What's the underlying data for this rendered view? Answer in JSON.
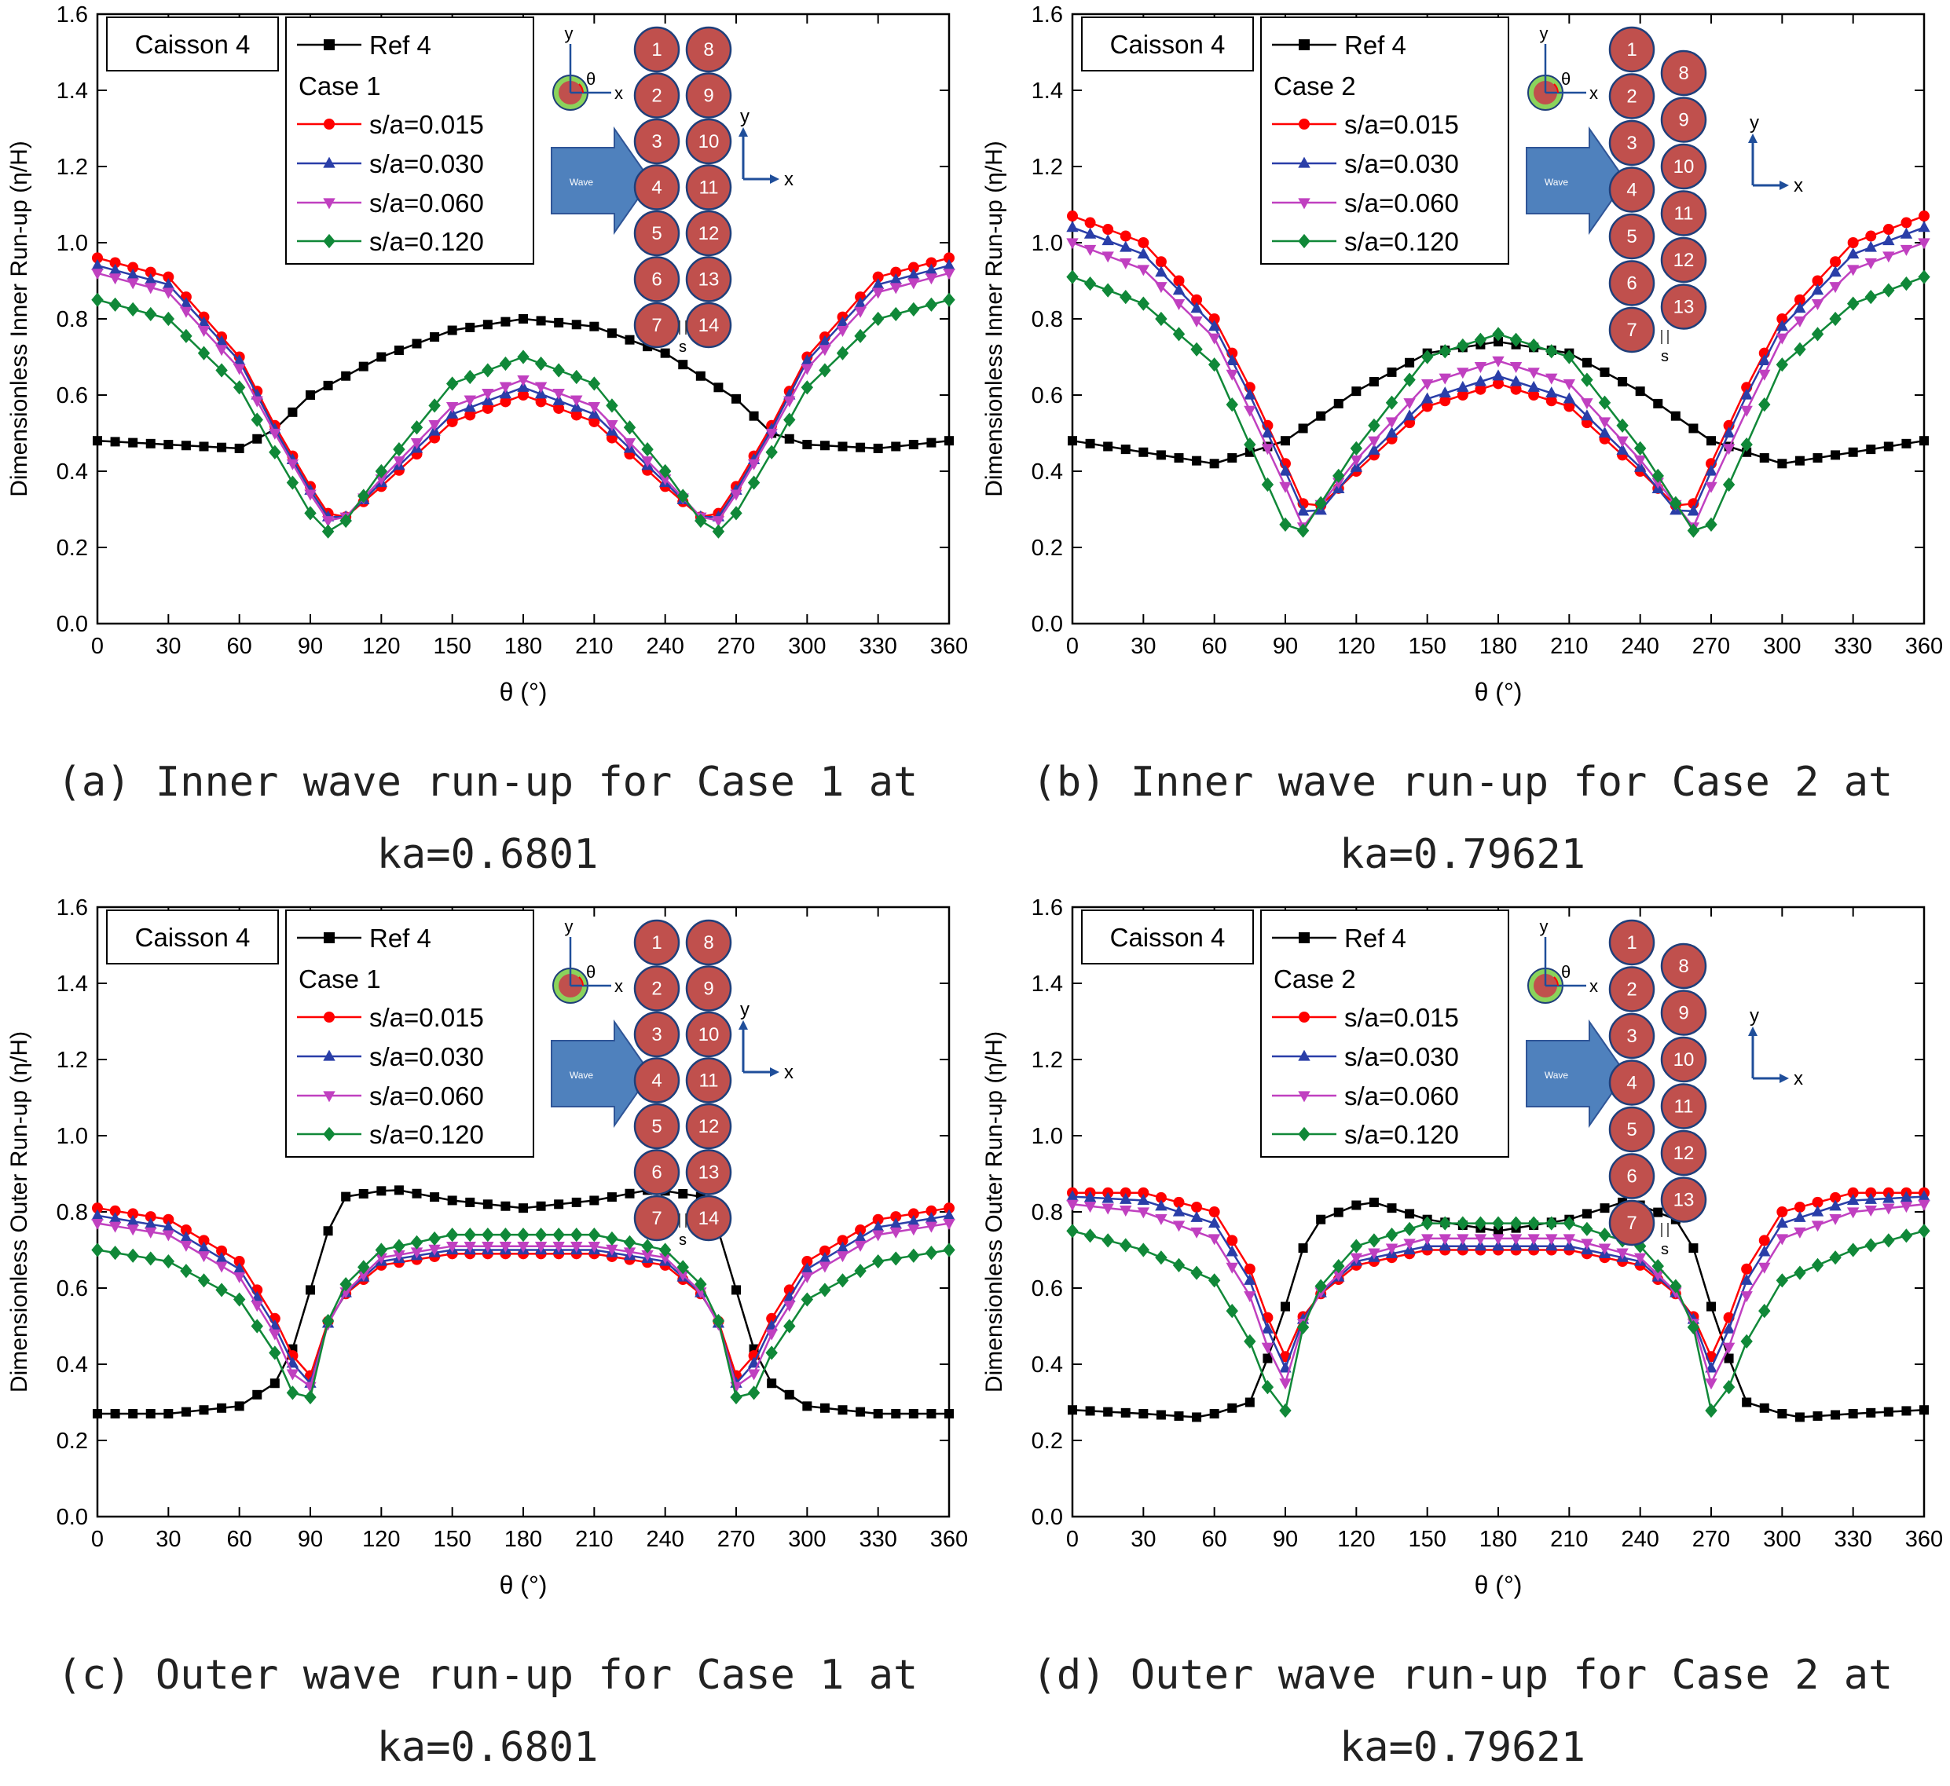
{
  "figure": {
    "x_ticks": [
      0,
      30,
      60,
      90,
      120,
      150,
      180,
      210,
      240,
      270,
      300,
      330,
      360
    ],
    "y_ticks": [
      0.0,
      0.2,
      0.4,
      0.6,
      0.8,
      1.0,
      1.2,
      1.4,
      1.6
    ],
    "xlabel": "θ (°)",
    "box_label": "Caisson 4",
    "legend_ref": "Ref 4",
    "series_labels": [
      "s/a=0.015",
      "s/a=0.030",
      "s/a=0.060",
      "s/a=0.120"
    ],
    "inset": {
      "axis_x": "x",
      "axis_y": "y",
      "angle": "θ",
      "gap": "s",
      "wave": "Wave"
    },
    "colors": {
      "ref": "#000000",
      "s015": "#ff0000",
      "s030": "#2a3ea8",
      "s060": "#c040c0",
      "s120": "#108838",
      "caisson_fill": "#c0504d",
      "caisson_edge": "#1f3f7a",
      "arrow": "#4f81bd",
      "axis_arrow": "#1f4e9a"
    }
  },
  "chart_data": [
    {
      "id": "a",
      "type": "line",
      "case_label": "Case 1",
      "ylabel": "Dimensionless Inner Run-up (η/H)",
      "caption_line1": "(a) Inner wave run-up for Case 1 at",
      "caption_line2": "ka=0.6801",
      "xlim": [
        0,
        360
      ],
      "ylim": [
        0,
        1.6
      ],
      "layout": "aligned",
      "ref": {
        "x": [
          0,
          30,
          60,
          75,
          90,
          120,
          150,
          180,
          210,
          240,
          270,
          285,
          300,
          330,
          360
        ],
        "y": [
          0.48,
          0.47,
          0.46,
          0.51,
          0.6,
          0.7,
          0.77,
          0.8,
          0.78,
          0.71,
          0.59,
          0.5,
          0.47,
          0.46,
          0.48
        ]
      },
      "series": [
        {
          "name": "s/a=0.015",
          "x": [
            0,
            30,
            60,
            75,
            90,
            97,
            105,
            120,
            150,
            180,
            210,
            240,
            255,
            263,
            270,
            285,
            300,
            330,
            360
          ],
          "y": [
            0.96,
            0.91,
            0.7,
            0.52,
            0.36,
            0.29,
            0.28,
            0.36,
            0.53,
            0.6,
            0.53,
            0.36,
            0.28,
            0.29,
            0.36,
            0.52,
            0.7,
            0.91,
            0.96
          ]
        },
        {
          "name": "s/a=0.030",
          "x": [
            0,
            30,
            60,
            75,
            90,
            97,
            105,
            120,
            150,
            180,
            210,
            240,
            255,
            263,
            270,
            285,
            300,
            330,
            360
          ],
          "y": [
            0.94,
            0.89,
            0.69,
            0.51,
            0.35,
            0.28,
            0.28,
            0.37,
            0.55,
            0.62,
            0.55,
            0.37,
            0.28,
            0.28,
            0.35,
            0.51,
            0.69,
            0.89,
            0.94
          ]
        },
        {
          "name": "s/a=0.060",
          "x": [
            0,
            30,
            60,
            75,
            90,
            97,
            105,
            120,
            150,
            180,
            210,
            240,
            255,
            263,
            270,
            285,
            300,
            330,
            360
          ],
          "y": [
            0.92,
            0.87,
            0.67,
            0.5,
            0.34,
            0.27,
            0.28,
            0.38,
            0.57,
            0.64,
            0.57,
            0.38,
            0.28,
            0.27,
            0.34,
            0.5,
            0.67,
            0.87,
            0.92
          ]
        },
        {
          "name": "s/a=0.120",
          "x": [
            0,
            30,
            60,
            75,
            90,
            97,
            105,
            120,
            150,
            180,
            210,
            240,
            255,
            263,
            270,
            285,
            300,
            330,
            360
          ],
          "y": [
            0.85,
            0.8,
            0.62,
            0.45,
            0.29,
            0.24,
            0.27,
            0.4,
            0.63,
            0.7,
            0.63,
            0.4,
            0.27,
            0.24,
            0.29,
            0.45,
            0.62,
            0.8,
            0.85
          ]
        }
      ]
    },
    {
      "id": "b",
      "type": "line",
      "case_label": "Case 2",
      "ylabel": "Dimensionless Inner Run-up (η/H)",
      "caption_line1": "(b) Inner wave run-up for Case 2 at",
      "caption_line2": "ka=0.79621",
      "xlim": [
        0,
        360
      ],
      "ylim": [
        0,
        1.6
      ],
      "layout": "staggered",
      "ref": {
        "x": [
          0,
          30,
          60,
          90,
          120,
          150,
          180,
          210,
          240,
          270,
          300,
          330,
          360
        ],
        "y": [
          0.48,
          0.45,
          0.42,
          0.48,
          0.61,
          0.71,
          0.74,
          0.71,
          0.61,
          0.48,
          0.42,
          0.45,
          0.48
        ]
      },
      "series": [
        {
          "name": "s/a=0.015",
          "x": [
            0,
            30,
            60,
            75,
            90,
            100,
            120,
            150,
            180,
            210,
            240,
            260,
            270,
            285,
            300,
            330,
            360
          ],
          "y": [
            1.07,
            1.0,
            0.8,
            0.62,
            0.42,
            0.28,
            0.4,
            0.57,
            0.63,
            0.57,
            0.4,
            0.28,
            0.42,
            0.62,
            0.8,
            1.0,
            1.07
          ]
        },
        {
          "name": "s/a=0.030",
          "x": [
            0,
            30,
            60,
            75,
            90,
            100,
            120,
            150,
            180,
            210,
            240,
            260,
            270,
            285,
            300,
            330,
            360
          ],
          "y": [
            1.04,
            0.97,
            0.78,
            0.6,
            0.4,
            0.26,
            0.41,
            0.59,
            0.65,
            0.59,
            0.41,
            0.26,
            0.4,
            0.6,
            0.78,
            0.97,
            1.04
          ]
        },
        {
          "name": "s/a=0.060",
          "x": [
            0,
            30,
            60,
            75,
            90,
            97,
            120,
            150,
            180,
            210,
            240,
            263,
            270,
            285,
            300,
            330,
            360
          ],
          "y": [
            1.0,
            0.93,
            0.75,
            0.56,
            0.36,
            0.25,
            0.43,
            0.63,
            0.69,
            0.63,
            0.43,
            0.25,
            0.36,
            0.56,
            0.75,
            0.93,
            1.0
          ]
        },
        {
          "name": "s/a=0.120",
          "x": [
            0,
            30,
            60,
            75,
            90,
            95,
            120,
            150,
            180,
            210,
            240,
            265,
            270,
            285,
            300,
            330,
            360
          ],
          "y": [
            0.91,
            0.84,
            0.68,
            0.47,
            0.26,
            0.22,
            0.46,
            0.7,
            0.76,
            0.7,
            0.46,
            0.22,
            0.26,
            0.47,
            0.68,
            0.84,
            0.91
          ]
        }
      ]
    },
    {
      "id": "c",
      "type": "line",
      "case_label": "Case 1",
      "ylabel": "Dimensionless Outer Run-up (η/H)",
      "caption_line1": "(c) Outer wave run-up for Case 1 at",
      "caption_line2": "ka=0.6801",
      "xlim": [
        0,
        360
      ],
      "ylim": [
        0,
        1.6
      ],
      "layout": "aligned",
      "ref": {
        "x": [
          0,
          30,
          60,
          75,
          85,
          95,
          105,
          125,
          150,
          180,
          210,
          235,
          255,
          265,
          275,
          285,
          300,
          330,
          360
        ],
        "y": [
          0.27,
          0.27,
          0.29,
          0.35,
          0.47,
          0.72,
          0.84,
          0.86,
          0.83,
          0.81,
          0.83,
          0.86,
          0.84,
          0.72,
          0.47,
          0.35,
          0.29,
          0.27,
          0.27
        ]
      },
      "series": [
        {
          "name": "s/a=0.015",
          "x": [
            0,
            30,
            60,
            75,
            85,
            90,
            100,
            120,
            150,
            180,
            210,
            240,
            260,
            270,
            275,
            285,
            300,
            330,
            360
          ],
          "y": [
            0.81,
            0.78,
            0.67,
            0.52,
            0.39,
            0.37,
            0.56,
            0.66,
            0.69,
            0.69,
            0.69,
            0.66,
            0.56,
            0.37,
            0.39,
            0.52,
            0.67,
            0.78,
            0.81
          ]
        },
        {
          "name": "s/a=0.030",
          "x": [
            0,
            30,
            60,
            75,
            85,
            90,
            100,
            120,
            150,
            180,
            210,
            240,
            260,
            270,
            275,
            285,
            300,
            330,
            360
          ],
          "y": [
            0.79,
            0.76,
            0.65,
            0.5,
            0.37,
            0.35,
            0.56,
            0.67,
            0.7,
            0.7,
            0.7,
            0.67,
            0.56,
            0.35,
            0.37,
            0.5,
            0.65,
            0.76,
            0.79
          ]
        },
        {
          "name": "s/a=0.060",
          "x": [
            0,
            30,
            60,
            75,
            85,
            89,
            100,
            120,
            150,
            180,
            210,
            240,
            260,
            271,
            275,
            285,
            300,
            330,
            360
          ],
          "y": [
            0.77,
            0.74,
            0.63,
            0.48,
            0.34,
            0.32,
            0.56,
            0.68,
            0.71,
            0.71,
            0.71,
            0.68,
            0.56,
            0.32,
            0.34,
            0.48,
            0.63,
            0.74,
            0.77
          ]
        },
        {
          "name": "s/a=0.120",
          "x": [
            0,
            30,
            60,
            75,
            85,
            88,
            100,
            120,
            150,
            180,
            210,
            240,
            260,
            272,
            275,
            285,
            300,
            330,
            360
          ],
          "y": [
            0.7,
            0.67,
            0.57,
            0.43,
            0.29,
            0.26,
            0.58,
            0.7,
            0.74,
            0.74,
            0.74,
            0.7,
            0.58,
            0.26,
            0.29,
            0.43,
            0.57,
            0.67,
            0.7
          ]
        }
      ]
    },
    {
      "id": "d",
      "type": "line",
      "case_label": "Case 2",
      "ylabel": "Dimensionless Outer Run-up (η/H)",
      "caption_line1": "(d) Outer wave run-up for Case 2 at",
      "caption_line2": "ka=0.79621",
      "xlim": [
        0,
        360
      ],
      "ylim": [
        0,
        1.6
      ],
      "layout": "staggered",
      "ref": {
        "x": [
          0,
          30,
          55,
          75,
          88,
          95,
          105,
          125,
          150,
          180,
          210,
          235,
          255,
          265,
          272,
          285,
          305,
          330,
          360
        ],
        "y": [
          0.28,
          0.27,
          0.26,
          0.3,
          0.5,
          0.68,
          0.78,
          0.83,
          0.78,
          0.75,
          0.78,
          0.83,
          0.78,
          0.68,
          0.5,
          0.3,
          0.26,
          0.27,
          0.28
        ]
      },
      "series": [
        {
          "name": "s/a=0.015",
          "x": [
            0,
            30,
            60,
            75,
            85,
            90,
            100,
            120,
            150,
            180,
            210,
            240,
            260,
            270,
            275,
            285,
            300,
            330,
            360
          ],
          "y": [
            0.85,
            0.85,
            0.8,
            0.65,
            0.48,
            0.42,
            0.56,
            0.66,
            0.7,
            0.7,
            0.7,
            0.66,
            0.56,
            0.42,
            0.48,
            0.65,
            0.8,
            0.85,
            0.85
          ]
        },
        {
          "name": "s/a=0.030",
          "x": [
            0,
            30,
            60,
            75,
            85,
            90,
            100,
            120,
            150,
            180,
            210,
            240,
            260,
            270,
            275,
            285,
            300,
            330,
            360
          ],
          "y": [
            0.84,
            0.83,
            0.77,
            0.62,
            0.45,
            0.39,
            0.56,
            0.67,
            0.71,
            0.71,
            0.71,
            0.67,
            0.56,
            0.39,
            0.45,
            0.62,
            0.77,
            0.83,
            0.84
          ]
        },
        {
          "name": "s/a=0.060",
          "x": [
            0,
            30,
            60,
            75,
            85,
            89,
            100,
            120,
            150,
            180,
            210,
            240,
            260,
            271,
            275,
            285,
            300,
            330,
            360
          ],
          "y": [
            0.82,
            0.8,
            0.73,
            0.58,
            0.4,
            0.33,
            0.56,
            0.68,
            0.73,
            0.73,
            0.73,
            0.68,
            0.56,
            0.33,
            0.4,
            0.58,
            0.73,
            0.8,
            0.82
          ]
        },
        {
          "name": "s/a=0.120",
          "x": [
            0,
            30,
            60,
            75,
            85,
            88,
            100,
            120,
            150,
            180,
            210,
            240,
            260,
            272,
            275,
            285,
            300,
            330,
            360
          ],
          "y": [
            0.75,
            0.7,
            0.62,
            0.46,
            0.3,
            0.22,
            0.57,
            0.71,
            0.77,
            0.77,
            0.77,
            0.71,
            0.57,
            0.22,
            0.3,
            0.46,
            0.62,
            0.7,
            0.75
          ]
        }
      ]
    }
  ]
}
